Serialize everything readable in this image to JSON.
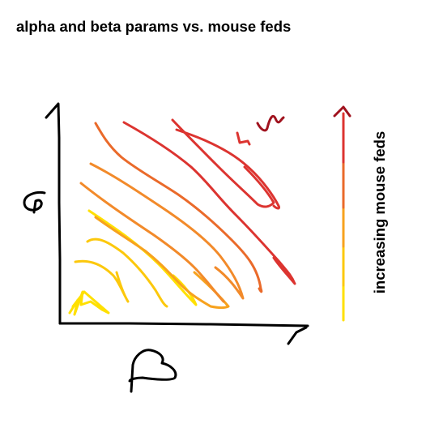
{
  "title": "alpha and beta params vs. mouse feds",
  "side_label": "increasing mouse feds",
  "colors": {
    "ink": "#000000",
    "lowest": "#ffe000",
    "low": "#fcc80c",
    "mid_low": "#f7a21e",
    "mid": "#f28a2a",
    "mid_high": "#ea6a2a",
    "high": "#dc3430",
    "highest": "#a0121e"
  }
}
